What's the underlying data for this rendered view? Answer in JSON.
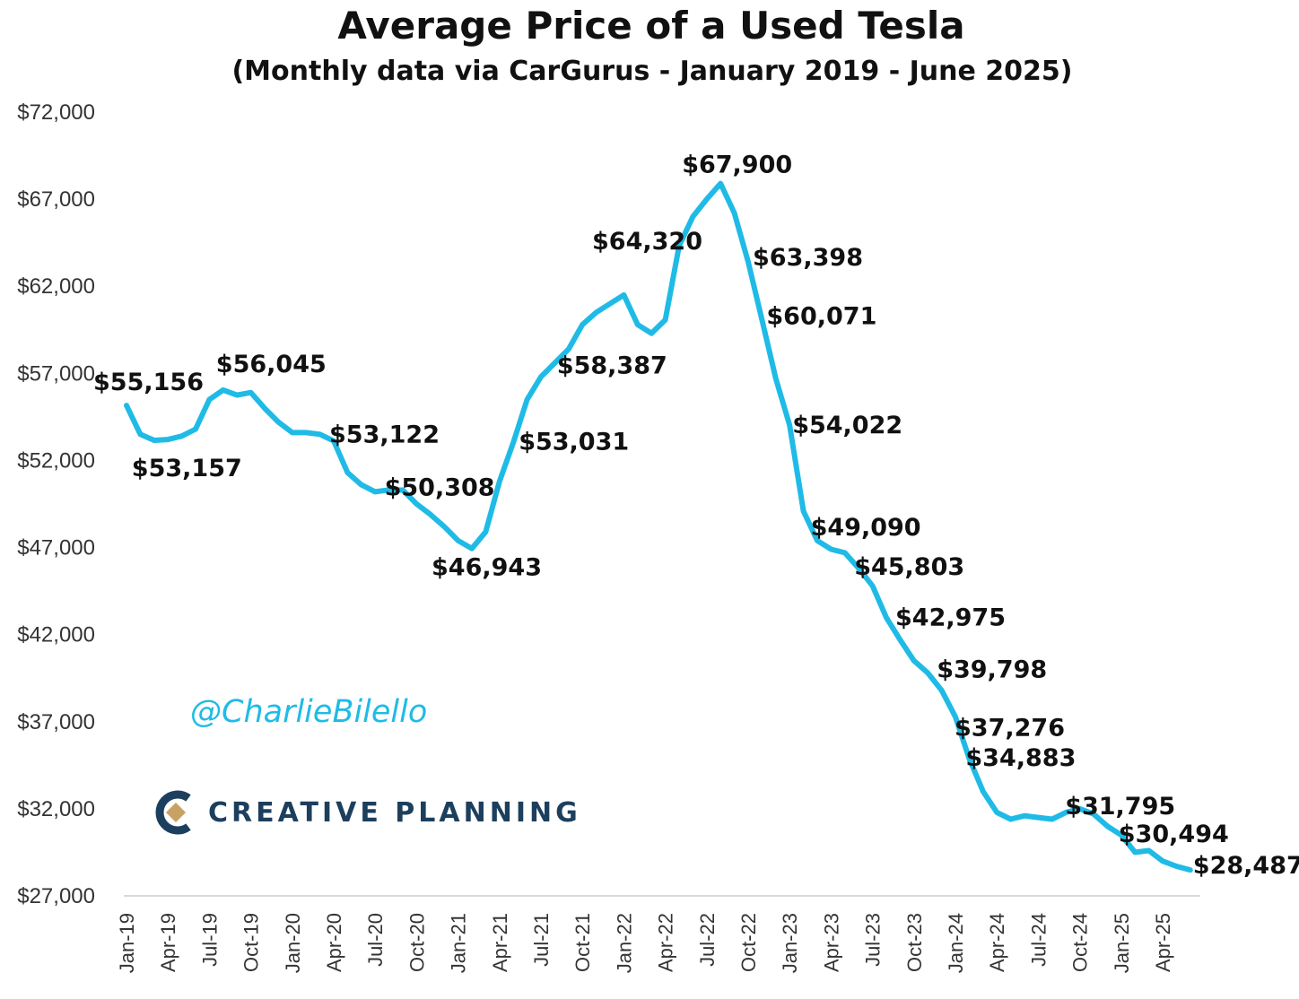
{
  "chart_data": {
    "type": "line",
    "title": "Average Price of a Used Tesla",
    "subtitle": "(Monthly data via CarGurus - January 2019 - June 2025)",
    "xlabel": "",
    "ylabel": "",
    "ylim": [
      27000,
      72000
    ],
    "yticks": [
      "$72,000",
      "$67,000",
      "$62,000",
      "$57,000",
      "$52,000",
      "$47,000",
      "$42,000",
      "$37,000",
      "$32,000",
      "$27,000"
    ],
    "ytick_values": [
      72000,
      67000,
      62000,
      57000,
      52000,
      47000,
      42000,
      37000,
      32000,
      27000
    ],
    "xticks": [
      "Jan-19",
      "Apr-19",
      "Jul-19",
      "Oct-19",
      "Jan-20",
      "Apr-20",
      "Jul-20",
      "Oct-20",
      "Jan-21",
      "Apr-21",
      "Jul-21",
      "Oct-21",
      "Jan-22",
      "Apr-22",
      "Jul-22",
      "Oct-22",
      "Jan-23",
      "Apr-23",
      "Jul-23",
      "Oct-23",
      "Jan-24",
      "Apr-24",
      "Jul-24",
      "Oct-24",
      "Jan-25",
      "Apr-25"
    ],
    "grid": false,
    "line_color": "#1fbbe6",
    "series": [
      {
        "x": [
          "Jan-19",
          "Feb-19",
          "Mar-19",
          "Apr-19",
          "May-19",
          "Jun-19",
          "Jul-19",
          "Aug-19",
          "Sep-19",
          "Oct-19",
          "Nov-19",
          "Dec-19",
          "Jan-20",
          "Feb-20",
          "Mar-20",
          "Apr-20",
          "May-20",
          "Jun-20",
          "Jul-20",
          "Aug-20",
          "Sep-20",
          "Oct-20",
          "Nov-20",
          "Dec-20",
          "Jan-21",
          "Feb-21",
          "Mar-21",
          "Apr-21",
          "May-21",
          "Jun-21",
          "Jul-21",
          "Aug-21",
          "Sep-21",
          "Oct-21",
          "Nov-21",
          "Dec-21",
          "Jan-22",
          "Feb-22",
          "Mar-22",
          "Apr-22",
          "May-22",
          "Jun-22",
          "Jul-22",
          "Aug-22",
          "Sep-22",
          "Oct-22",
          "Nov-22",
          "Dec-22",
          "Jan-23",
          "Feb-23",
          "Mar-23",
          "Apr-23",
          "May-23",
          "Jun-23",
          "Jul-23",
          "Aug-23",
          "Sep-23",
          "Oct-23",
          "Nov-23",
          "Dec-23",
          "Jan-24",
          "Feb-24",
          "Mar-24",
          "Apr-24",
          "May-24",
          "Jun-24",
          "Jul-24",
          "Aug-24",
          "Sep-24",
          "Oct-24",
          "Nov-24",
          "Dec-24",
          "Jan-25",
          "Feb-25",
          "Mar-25",
          "Apr-25",
          "May-25",
          "Jun-25"
        ],
        "values": [
          55156,
          53500,
          53157,
          53200,
          53400,
          53800,
          55500,
          56045,
          55750,
          55900,
          55000,
          54200,
          53600,
          53600,
          53500,
          53122,
          51300,
          50600,
          50200,
          50308,
          50300,
          49500,
          48900,
          48200,
          47400,
          46943,
          47900,
          50800,
          53031,
          55500,
          56800,
          57600,
          58387,
          59800,
          60500,
          61000,
          61500,
          59800,
          59300,
          60071,
          64320,
          66000,
          67000,
          67900,
          66200,
          63398,
          60071,
          56700,
          54022,
          49090,
          47400,
          46900,
          46700,
          45803,
          44800,
          42975,
          41700,
          40500,
          39798,
          38800,
          37276,
          34883,
          33000,
          31795,
          31400,
          31600,
          31500,
          31400,
          31795,
          32000,
          31700,
          31000,
          30494,
          29500,
          29600,
          29000,
          28700,
          28487
        ]
      }
    ],
    "annotations": [
      {
        "text": "$55,156",
        "x": "Jan-19",
        "y": 55156
      },
      {
        "text": "$53,157",
        "x": "Mar-19",
        "y": 53157
      },
      {
        "text": "$56,045",
        "x": "Aug-19",
        "y": 56045
      },
      {
        "text": "$53,122",
        "x": "Apr-20",
        "y": 53122
      },
      {
        "text": "$50,308",
        "x": "Aug-20",
        "y": 50308
      },
      {
        "text": "$46,943",
        "x": "Feb-21",
        "y": 46943
      },
      {
        "text": "$53,031",
        "x": "May-21",
        "y": 53031
      },
      {
        "text": "$58,387",
        "x": "Sep-21",
        "y": 58387
      },
      {
        "text": "$64,320",
        "x": "May-22",
        "y": 64320
      },
      {
        "text": "$67,900",
        "x": "Aug-22",
        "y": 67900
      },
      {
        "text": "$63,398",
        "x": "Oct-22",
        "y": 63398
      },
      {
        "text": "$60,071",
        "x": "Nov-22",
        "y": 60071
      },
      {
        "text": "$54,022",
        "x": "Jan-23",
        "y": 54022
      },
      {
        "text": "$49,090",
        "x": "Feb-23",
        "y": 49090
      },
      {
        "text": "$45,803",
        "x": "Jun-23",
        "y": 45803
      },
      {
        "text": "$42,975",
        "x": "Aug-23",
        "y": 42975
      },
      {
        "text": "$39,798",
        "x": "Nov-23",
        "y": 39798
      },
      {
        "text": "$37,276",
        "x": "Jan-24",
        "y": 37276
      },
      {
        "text": "$34,883",
        "x": "Feb-24",
        "y": 34883
      },
      {
        "text": "$31,795",
        "x": "Sep-24",
        "y": 31795
      },
      {
        "text": "$30,494",
        "x": "Jan-25",
        "y": 30494
      },
      {
        "text": "$28,487",
        "x": "Jun-25",
        "y": 28487
      }
    ]
  },
  "watermark": {
    "handle": "@CharlieBilello",
    "color": "#1fbbe6"
  },
  "logo": {
    "text": "CREATIVE PLANNING",
    "icon": "creative-planning-logo-icon",
    "color": "#1d3f5e"
  }
}
